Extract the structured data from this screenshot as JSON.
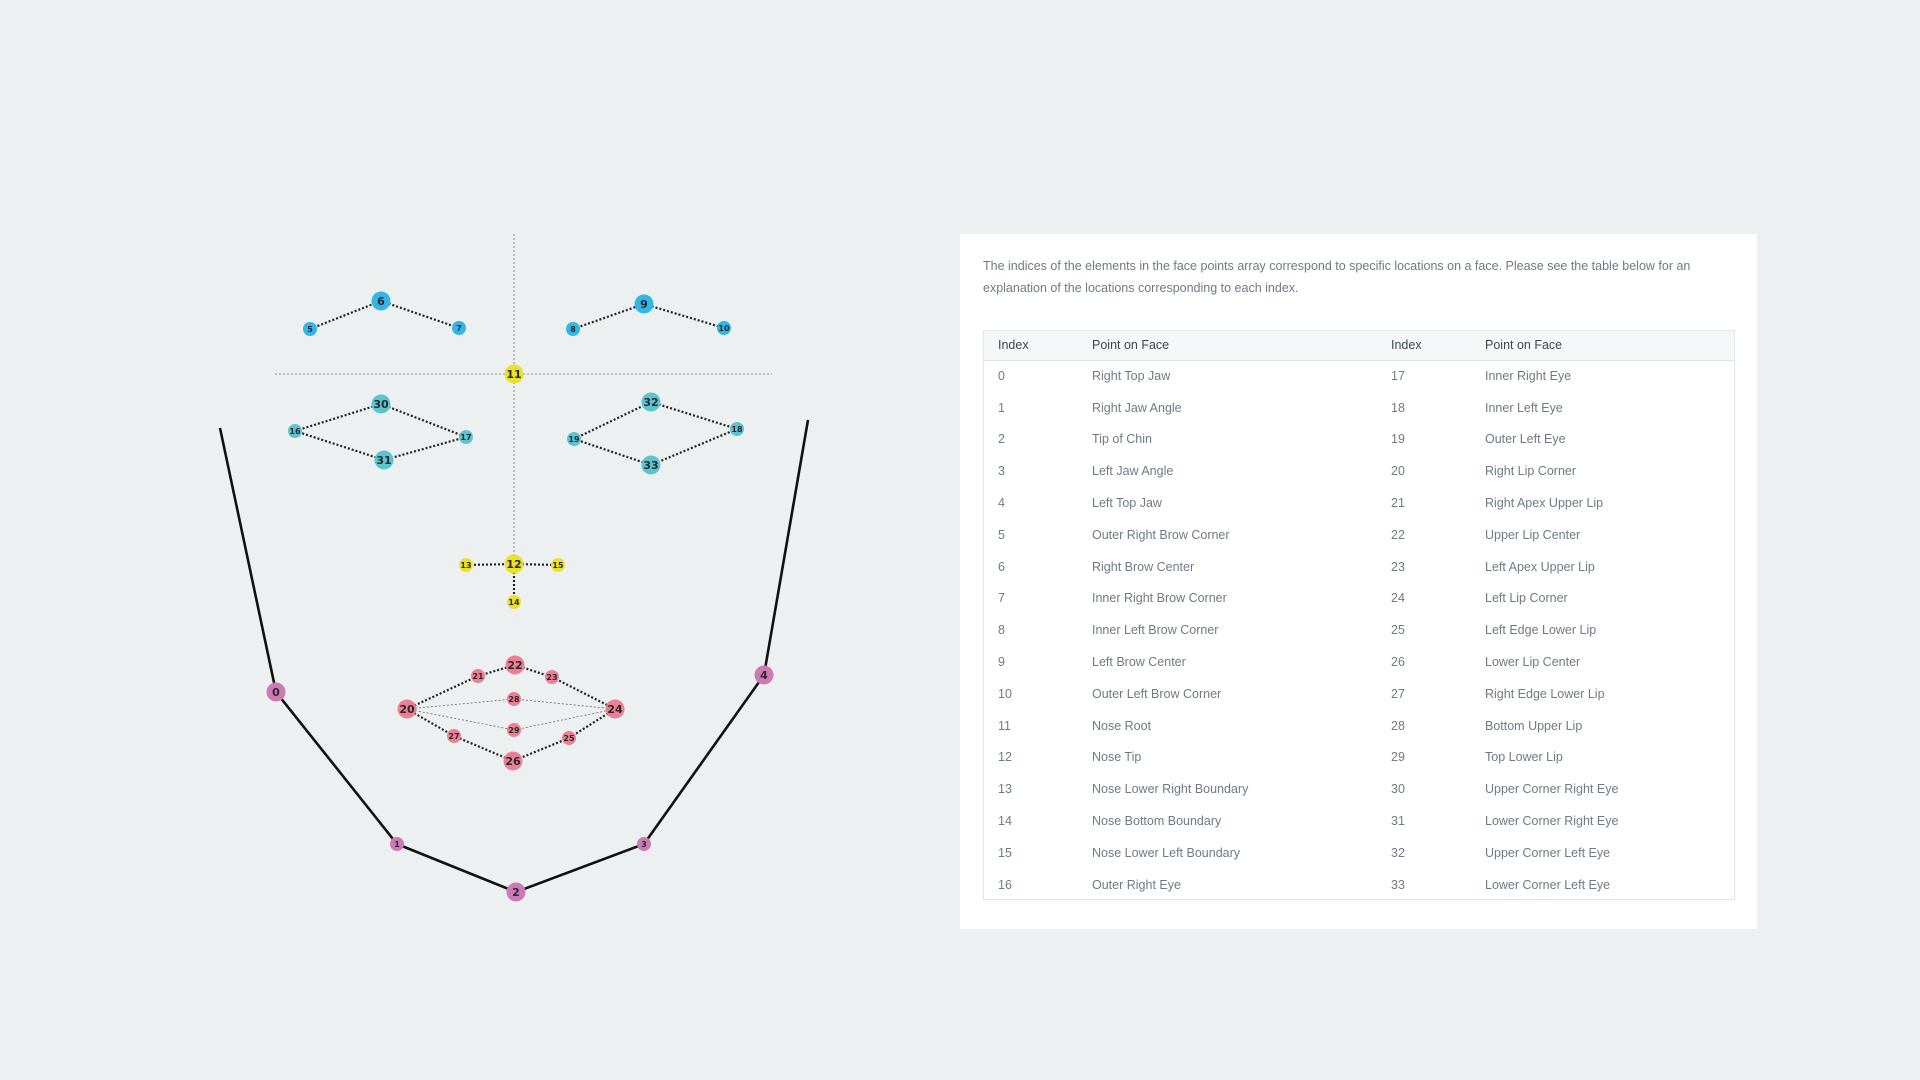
{
  "description": "The indices of the elements in the face points array correspond to specific locations on a face. Please see the table below for an explanation of the locations corresponding to each index.",
  "table": {
    "headers": [
      "Index",
      "Point on Face",
      "Index",
      "Point on Face"
    ],
    "points": [
      "Right Top Jaw",
      "Right Jaw Angle",
      "Tip of Chin",
      "Left Jaw Angle",
      "Left Top Jaw",
      "Outer Right Brow Corner",
      "Right Brow Center",
      "Inner Right Brow Corner",
      "Inner Left Brow Corner",
      "Left Brow Center",
      "Outer Left Brow Corner",
      "Nose Root",
      "Nose Tip",
      "Nose Lower Right Boundary",
      "Nose Bottom Boundary",
      "Nose Lower Left Boundary",
      "Outer Right Eye",
      "Inner Right Eye",
      "Inner Left Eye",
      "Outer Left Eye",
      "Right Lip Corner",
      "Right Apex Upper Lip",
      "Upper Lip Center",
      "Left Apex Upper Lip",
      "Left Lip Corner",
      "Left Edge Lower Lip",
      "Lower Lip Center",
      "Right Edge Lower Lip",
      "Bottom Upper Lip",
      "Top Lower Lip",
      "Upper Corner Right Eye",
      "Lower Corner Right Eye",
      "Upper Corner Left Eye",
      "Lower Corner Left Eye"
    ]
  },
  "diagram": {
    "colors": {
      "jaw": "#cc79b5",
      "brow": "#31b6e7",
      "nose": "#e9e229",
      "eye": "#5bc4d1",
      "lip": "#ee7e93"
    },
    "point_labels": [
      "0",
      "1",
      "2",
      "3",
      "4",
      "5",
      "6",
      "7",
      "8",
      "9",
      "10",
      "11",
      "12",
      "13",
      "14",
      "15",
      "16",
      "17",
      "18",
      "19",
      "20",
      "21",
      "22",
      "23",
      "24",
      "25",
      "26",
      "27",
      "28",
      "29",
      "30",
      "31",
      "32",
      "33"
    ]
  }
}
